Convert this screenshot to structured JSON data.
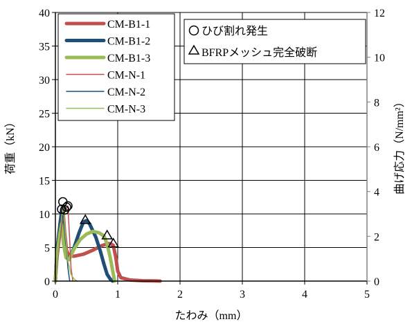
{
  "chart_data": {
    "type": "line",
    "xlabel": "たわみ（mm）",
    "ylabel": "荷重（kN）",
    "y2label": "曲げ応力（N/mm²）",
    "xlim": [
      0,
      5
    ],
    "ylim": [
      0,
      40
    ],
    "y2lim": [
      0,
      12
    ],
    "xticks": [
      "0",
      "1",
      "2",
      "3",
      "4",
      "5"
    ],
    "yticks": [
      "0",
      "5",
      "10",
      "15",
      "20",
      "25",
      "30",
      "35",
      "40"
    ],
    "y2ticks": [
      "0",
      "2",
      "4",
      "6",
      "8",
      "10",
      "12"
    ],
    "grid": true,
    "legend_position": "top-left",
    "colors": {
      "red": "#c0504d",
      "blue": "#1f4e79",
      "green": "#9bbb59",
      "axis": "#000000",
      "grid": "#000000",
      "y2axis": "#808080"
    },
    "series": [
      {
        "name": "CM-B1-1",
        "color": "#c0504d",
        "width": "thick",
        "x": [
          0,
          0.03,
          0.08,
          0.12,
          0.15,
          0.18,
          0.22,
          0.3,
          0.45,
          0.6,
          0.75,
          0.85,
          0.9,
          0.93,
          0.97,
          1.0,
          1.05,
          1.2,
          1.4,
          1.6,
          1.68
        ],
        "y": [
          0,
          5,
          9,
          10.8,
          7,
          4.5,
          3.8,
          3.7,
          4.0,
          4.6,
          5.3,
          5.6,
          5.5,
          5.3,
          3.5,
          1.5,
          0.5,
          0.15,
          0.05,
          0.02,
          0
        ]
      },
      {
        "name": "CM-B1-2",
        "color": "#1f4e79",
        "width": "thick",
        "x": [
          0,
          0.03,
          0.07,
          0.1,
          0.14,
          0.18,
          0.22,
          0.3,
          0.38,
          0.45,
          0.5,
          0.55,
          0.65,
          0.72,
          0.78,
          0.83,
          0.88,
          0.92
        ],
        "y": [
          0,
          5,
          8,
          10.5,
          6,
          3.5,
          3.2,
          5.0,
          7.2,
          8.8,
          9.0,
          8.5,
          6.5,
          4.5,
          2.5,
          1.0,
          0.3,
          0
        ]
      },
      {
        "name": "CM-B1-3",
        "color": "#9bbb59",
        "width": "thick",
        "x": [
          0,
          0.03,
          0.07,
          0.1,
          0.13,
          0.17,
          0.22,
          0.3,
          0.4,
          0.5,
          0.6,
          0.7,
          0.78,
          0.83,
          0.88,
          0.92,
          0.95
        ],
        "y": [
          0,
          4,
          7,
          8.5,
          5.5,
          3.5,
          3.2,
          4.8,
          6.2,
          7.0,
          7.4,
          7.2,
          6.7,
          5.5,
          3.5,
          1.5,
          0
        ]
      },
      {
        "name": "CM-N-1",
        "color": "#c0504d",
        "width": "thin",
        "x": [
          0,
          0.05,
          0.1,
          0.15,
          0.2,
          0.23,
          0.25,
          0.28
        ],
        "y": [
          0,
          4,
          8,
          10.5,
          11.2,
          6,
          2,
          0
        ]
      },
      {
        "name": "CM-N-2",
        "color": "#1f4e79",
        "width": "thin",
        "x": [
          0,
          0.05,
          0.1,
          0.13,
          0.17,
          0.2,
          0.23
        ],
        "y": [
          0,
          5,
          9,
          10.2,
          6,
          2,
          0
        ]
      },
      {
        "name": "CM-N-3",
        "color": "#9bbb59",
        "width": "thin",
        "x": [
          0,
          0.05,
          0.1,
          0.13,
          0.16,
          0.2,
          0.25,
          0.3,
          0.35
        ],
        "y": [
          0,
          5,
          9.5,
          11.3,
          7,
          3,
          1,
          0.3,
          0
        ]
      }
    ],
    "markers": {
      "crack": {
        "label": "ひび割れ発生",
        "symbol": "circle",
        "points": [
          [
            0.12,
            11.8
          ],
          [
            0.18,
            11.0
          ],
          [
            0.15,
            10.6
          ],
          [
            0.2,
            11.2
          ],
          [
            0.1,
            10.7
          ]
        ]
      },
      "rupture": {
        "label": "BFRPメッシュ完全破断",
        "symbol": "triangle",
        "points": [
          [
            0.48,
            9.1
          ],
          [
            0.83,
            6.8
          ],
          [
            0.93,
            5.6
          ]
        ]
      }
    }
  }
}
